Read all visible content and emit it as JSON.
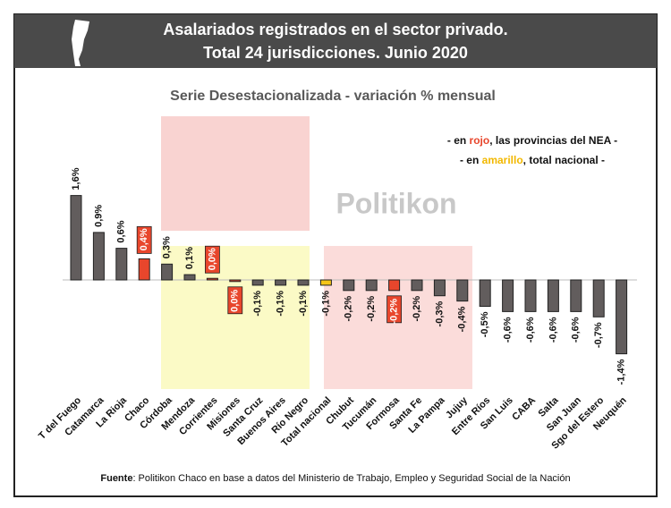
{
  "chart_data": {
    "type": "bar",
    "title": [
      "Asalariados registrados en el sector privado.",
      "Total 24 jurisdicciones. Junio 2020"
    ],
    "subtitle": "Serie Desestacionalizada - variación % mensual",
    "notes": [
      [
        "- en ",
        "rojo",
        ", las provincias del NEA -"
      ],
      [
        "- en ",
        "amarillo",
        ", total nacional -"
      ]
    ],
    "note_colors": [
      "#e8462c",
      "#f2b800"
    ],
    "watermark": "Politikon",
    "source": [
      "Fuente",
      ": Politikon Chaco en base a datos del Ministerio de Trabajo, Empleo y Seguridad Social de la Nación"
    ],
    "categories": [
      "T del Fuego",
      "Catamarca",
      "La Rioja",
      "Chaco",
      "Córdoba",
      "Mendoza",
      "Corrientes",
      "Misiones",
      "Santa Cruz",
      "Buenos Aires",
      "Río Negro",
      "Total nacional",
      "Chubut",
      "Tucumán",
      "Formosa",
      "Santa Fe",
      "La Pampa",
      "Jujuy",
      "Entre Ríos",
      "San Luis",
      "CABA",
      "Salta",
      "San Juan",
      "Sgo del Estero",
      "Neuquén"
    ],
    "values": [
      1.6,
      0.9,
      0.6,
      0.4,
      0.3,
      0.1,
      0.03,
      -0.03,
      -0.1,
      -0.1,
      -0.1,
      -0.1,
      -0.2,
      -0.2,
      -0.2,
      -0.2,
      -0.3,
      -0.4,
      -0.5,
      -0.6,
      -0.6,
      -0.6,
      -0.6,
      -0.7,
      -1.4
    ],
    "value_labels": [
      "1,6%",
      "0,9%",
      "0,6%",
      "0,4%",
      "0,3%",
      "0,1%",
      "0,0%",
      "0,0%",
      "-0,1%",
      "-0,1%",
      "-0,1%",
      "-0,1%",
      "-0,2%",
      "-0,2%",
      "-0,2%",
      "-0,2%",
      "-0,3%",
      "-0,4%",
      "-0,5%",
      "-0,6%",
      "-0,6%",
      "-0,6%",
      "-0,6%",
      "-0,7%",
      "-1,4%"
    ],
    "colors": [
      "#625d5d",
      "#625d5d",
      "#625d5d",
      "#e8462c",
      "#625d5d",
      "#625d5d",
      "#e8462c",
      "#e8462c",
      "#625d5d",
      "#625d5d",
      "#625d5d",
      "#f5c518",
      "#625d5d",
      "#625d5d",
      "#e8462c",
      "#625d5d",
      "#625d5d",
      "#625d5d",
      "#625d5d",
      "#625d5d",
      "#625d5d",
      "#625d5d",
      "#625d5d",
      "#625d5d",
      "#625d5d"
    ],
    "highlight_color": "#e8462c"
  }
}
